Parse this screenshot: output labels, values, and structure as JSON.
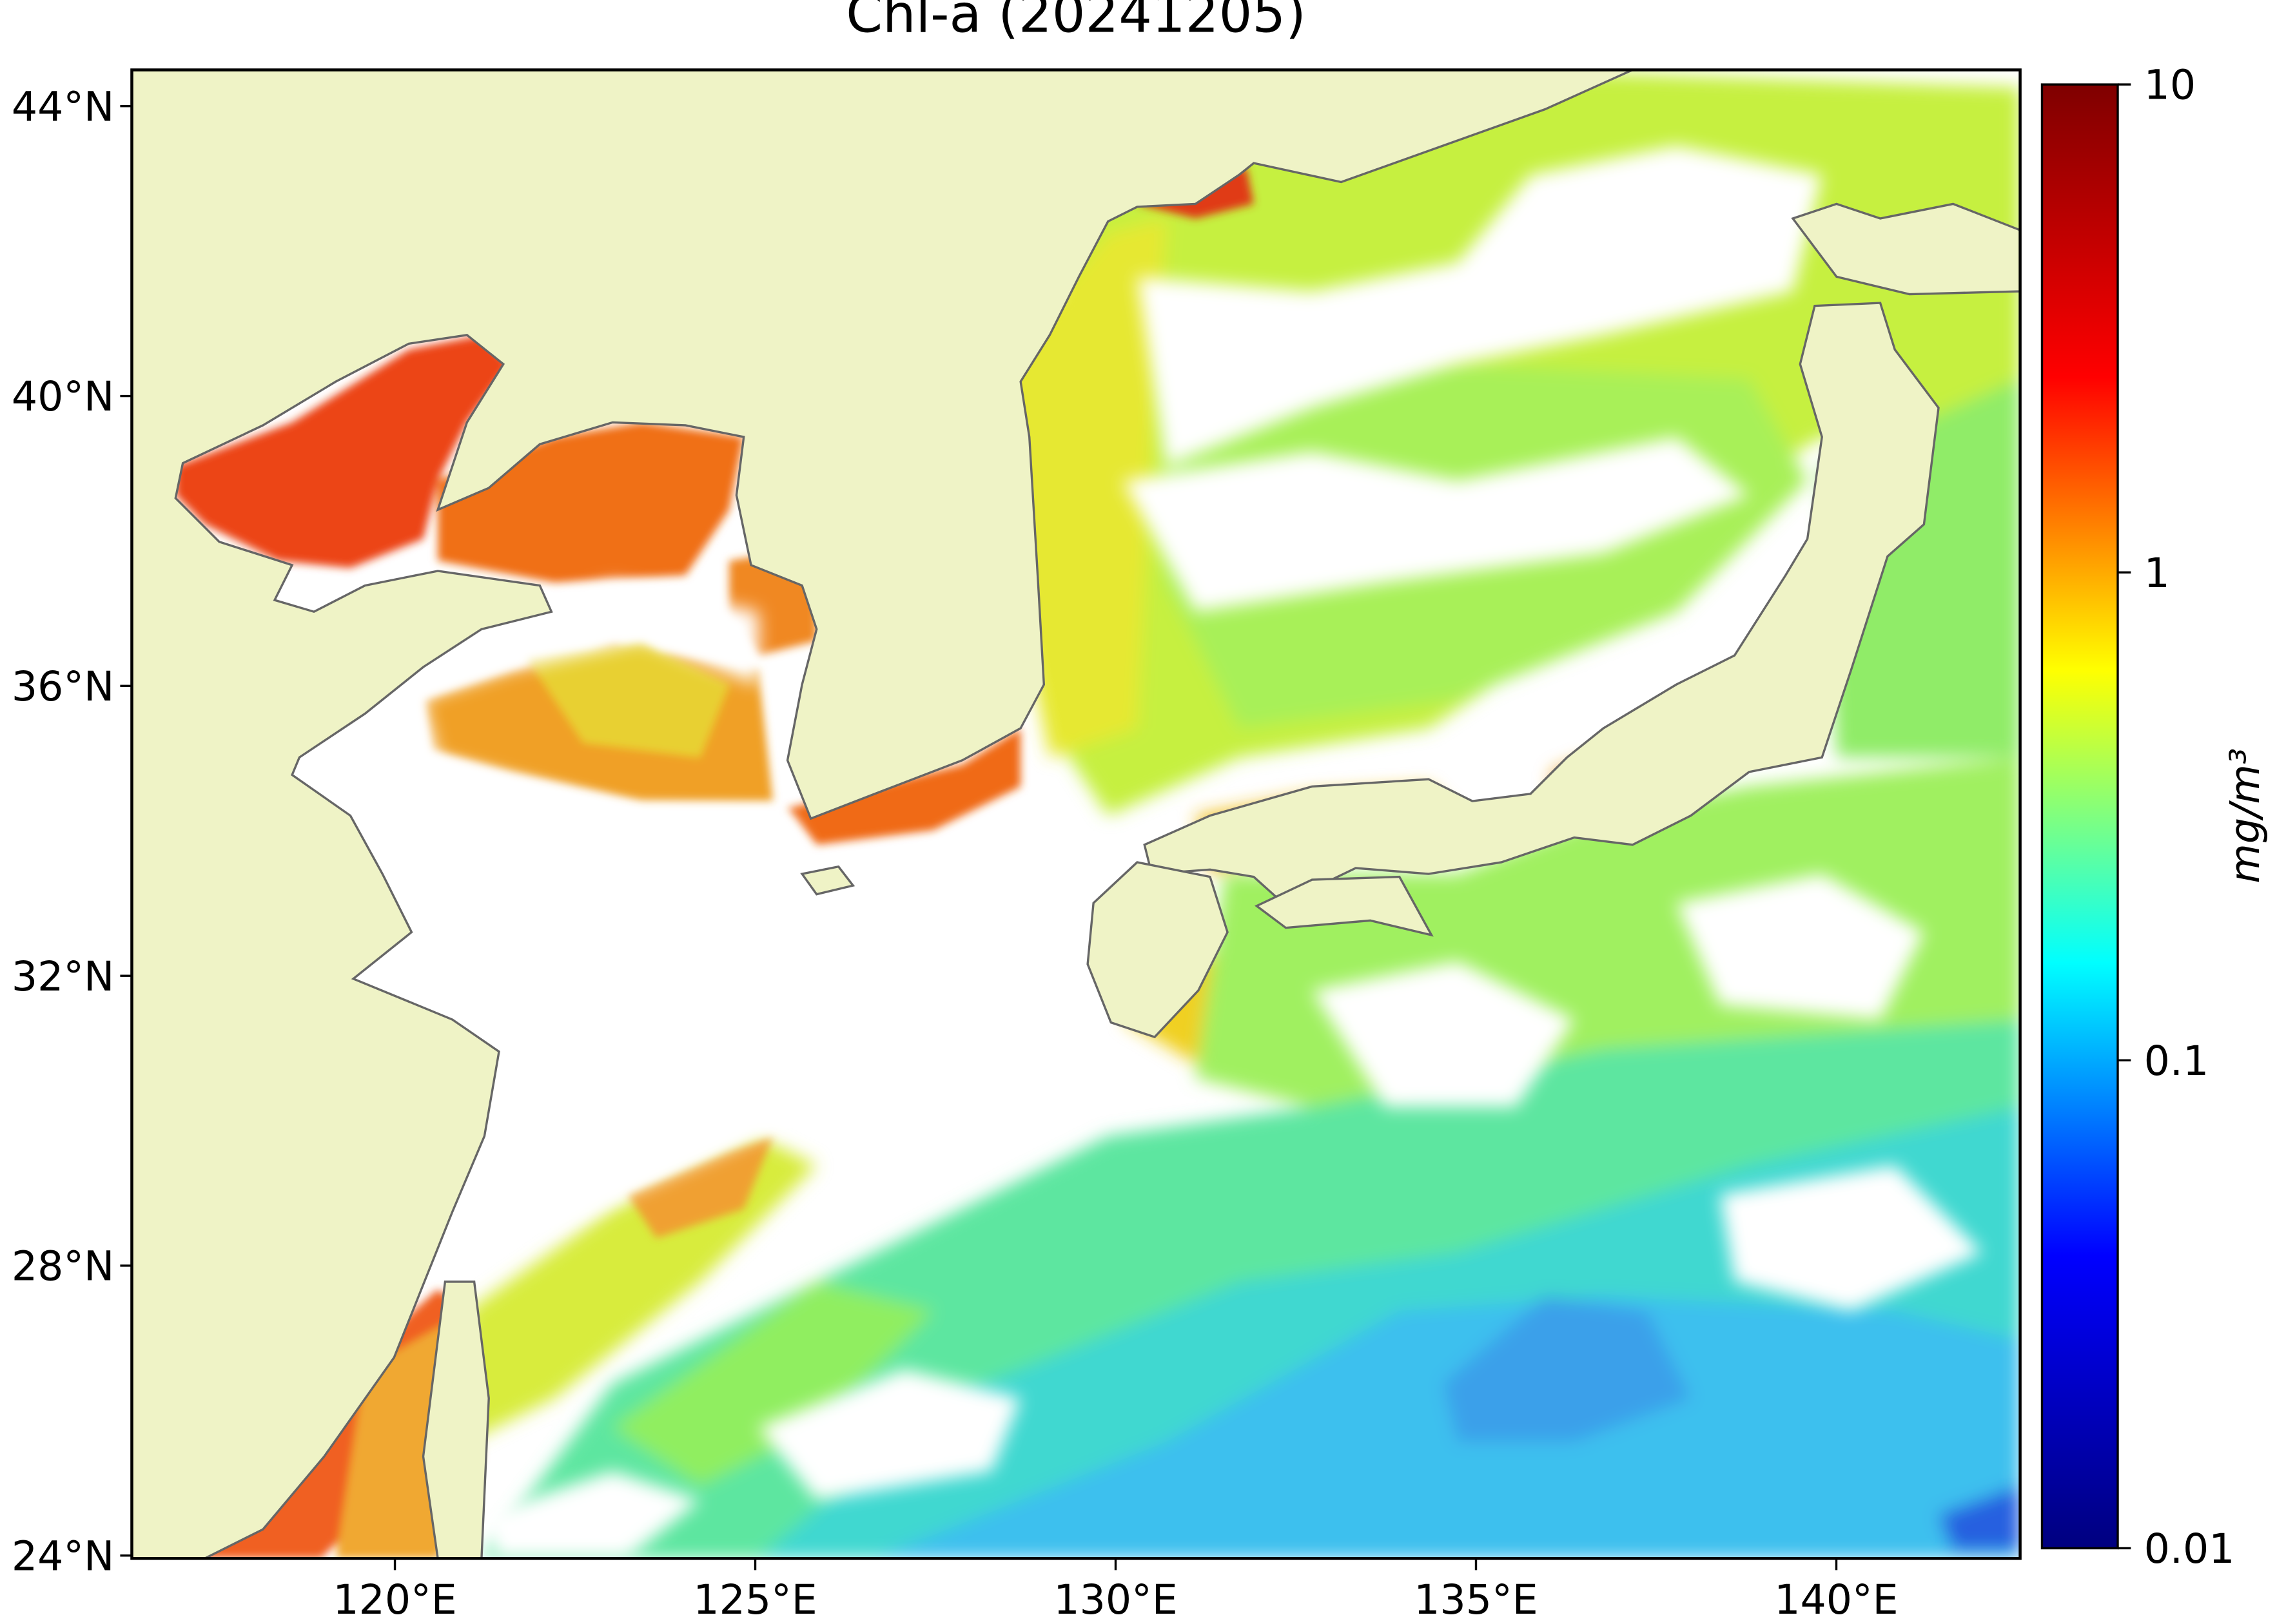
{
  "title": "Chl-a (20241205)",
  "map": {
    "xlim": [
      116.35,
      142.55
    ],
    "ylim": [
      23.96,
      44.5
    ],
    "xticks": [
      {
        "value": 120,
        "label": "120°E"
      },
      {
        "value": 125,
        "label": "125°E"
      },
      {
        "value": 130,
        "label": "130°E"
      },
      {
        "value": 135,
        "label": "135°E"
      },
      {
        "value": 140,
        "label": "140°E"
      }
    ],
    "yticks": [
      {
        "value": 24,
        "label": "24°N"
      },
      {
        "value": 28,
        "label": "28°N"
      },
      {
        "value": 32,
        "label": "32°N"
      },
      {
        "value": 36,
        "label": "36°N"
      },
      {
        "value": 40,
        "label": "40°N"
      },
      {
        "value": 44,
        "label": "44°N"
      }
    ]
  },
  "colorbar": {
    "label": "mg/m³",
    "log": true,
    "lim": [
      0.01,
      10
    ],
    "ticks": [
      0.01,
      0.1,
      1,
      10
    ],
    "colors": [
      "#00007f",
      "#0000ff",
      "#00ffff",
      "#ffff00",
      "#ff0000",
      "#7f0000"
    ]
  }
}
